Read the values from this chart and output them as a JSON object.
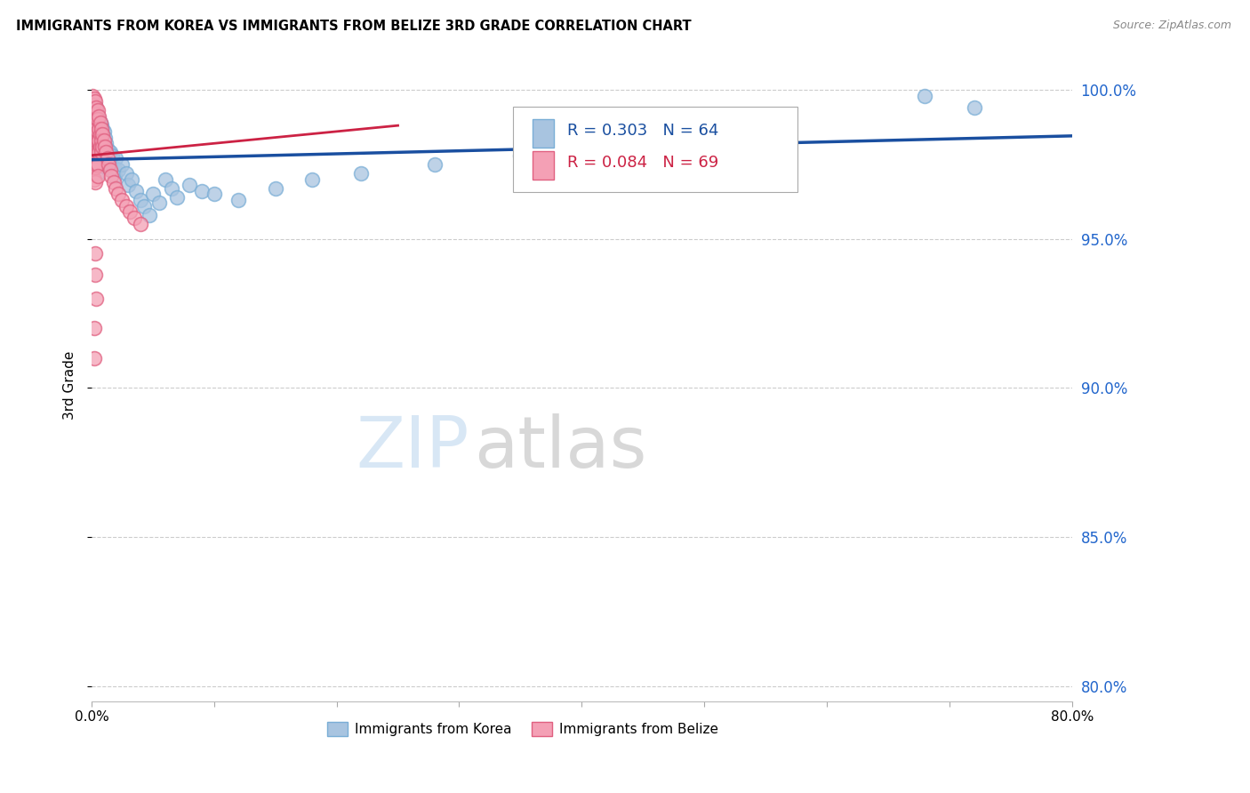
{
  "title": "IMMIGRANTS FROM KOREA VS IMMIGRANTS FROM BELIZE 3RD GRADE CORRELATION CHART",
  "source": "Source: ZipAtlas.com",
  "ylabel": "3rd Grade",
  "xlim": [
    0.0,
    0.8
  ],
  "ylim": [
    0.795,
    1.007
  ],
  "yticks": [
    0.8,
    0.85,
    0.9,
    0.95,
    1.0
  ],
  "ytick_labels": [
    "80.0%",
    "85.0%",
    "90.0%",
    "95.0%",
    "100.0%"
  ],
  "xticks": [
    0.0,
    0.1,
    0.2,
    0.3,
    0.4,
    0.5,
    0.6,
    0.7,
    0.8
  ],
  "xtick_labels": [
    "0.0%",
    "",
    "",
    "",
    "",
    "",
    "",
    "",
    "80.0%"
  ],
  "korea_color": "#a8c4e0",
  "belize_color": "#f4a0b5",
  "korea_edge_color": "#7aaed6",
  "belize_edge_color": "#e06080",
  "trend_korea_color": "#1a4fa0",
  "trend_belize_color": "#cc2244",
  "r_korea": 0.303,
  "n_korea": 64,
  "r_belize": 0.084,
  "n_belize": 69,
  "korea_x": [
    0.001,
    0.002,
    0.002,
    0.003,
    0.003,
    0.003,
    0.004,
    0.004,
    0.004,
    0.005,
    0.005,
    0.005,
    0.005,
    0.006,
    0.006,
    0.006,
    0.007,
    0.007,
    0.007,
    0.008,
    0.008,
    0.009,
    0.009,
    0.01,
    0.01,
    0.011,
    0.011,
    0.012,
    0.012,
    0.013,
    0.014,
    0.015,
    0.016,
    0.017,
    0.018,
    0.019,
    0.02,
    0.022,
    0.025,
    0.028,
    0.03,
    0.033,
    0.036,
    0.04,
    0.043,
    0.047,
    0.05,
    0.055,
    0.06,
    0.065,
    0.07,
    0.08,
    0.09,
    0.1,
    0.12,
    0.15,
    0.18,
    0.22,
    0.28,
    0.35,
    0.42,
    0.55,
    0.68,
    0.72
  ],
  "korea_y": [
    0.992,
    0.99,
    0.985,
    0.995,
    0.988,
    0.982,
    0.993,
    0.986,
    0.979,
    0.991,
    0.985,
    0.979,
    0.972,
    0.99,
    0.983,
    0.976,
    0.989,
    0.982,
    0.975,
    0.988,
    0.98,
    0.987,
    0.978,
    0.986,
    0.977,
    0.984,
    0.975,
    0.982,
    0.974,
    0.98,
    0.976,
    0.979,
    0.975,
    0.978,
    0.974,
    0.971,
    0.977,
    0.973,
    0.975,
    0.972,
    0.968,
    0.97,
    0.966,
    0.963,
    0.961,
    0.958,
    0.965,
    0.962,
    0.97,
    0.967,
    0.964,
    0.968,
    0.966,
    0.965,
    0.963,
    0.967,
    0.97,
    0.972,
    0.975,
    0.978,
    0.98,
    0.982,
    0.998,
    0.994
  ],
  "belize_x": [
    0.001,
    0.001,
    0.001,
    0.001,
    0.001,
    0.001,
    0.001,
    0.001,
    0.002,
    0.002,
    0.002,
    0.002,
    0.002,
    0.002,
    0.002,
    0.002,
    0.003,
    0.003,
    0.003,
    0.003,
    0.003,
    0.003,
    0.003,
    0.003,
    0.004,
    0.004,
    0.004,
    0.004,
    0.004,
    0.004,
    0.005,
    0.005,
    0.005,
    0.005,
    0.005,
    0.005,
    0.005,
    0.006,
    0.006,
    0.006,
    0.006,
    0.007,
    0.007,
    0.007,
    0.008,
    0.008,
    0.008,
    0.009,
    0.009,
    0.01,
    0.011,
    0.012,
    0.013,
    0.014,
    0.015,
    0.016,
    0.018,
    0.02,
    0.022,
    0.025,
    0.028,
    0.031,
    0.035,
    0.04,
    0.003,
    0.003,
    0.004,
    0.002,
    0.002
  ],
  "belize_y": [
    0.998,
    0.995,
    0.992,
    0.989,
    0.985,
    0.982,
    0.978,
    0.974,
    0.997,
    0.993,
    0.989,
    0.985,
    0.982,
    0.978,
    0.974,
    0.97,
    0.996,
    0.992,
    0.989,
    0.985,
    0.982,
    0.978,
    0.974,
    0.969,
    0.994,
    0.99,
    0.987,
    0.983,
    0.979,
    0.975,
    0.993,
    0.99,
    0.986,
    0.983,
    0.979,
    0.975,
    0.971,
    0.991,
    0.987,
    0.983,
    0.979,
    0.989,
    0.985,
    0.981,
    0.987,
    0.983,
    0.979,
    0.985,
    0.981,
    0.983,
    0.981,
    0.979,
    0.977,
    0.975,
    0.973,
    0.971,
    0.969,
    0.967,
    0.965,
    0.963,
    0.961,
    0.959,
    0.957,
    0.955,
    0.945,
    0.938,
    0.93,
    0.92,
    0.91
  ],
  "watermark_zip": "ZIP",
  "watermark_atlas": "atlas",
  "watermark_color_zip": "#c8dff0",
  "watermark_color_atlas": "#c8c8c8"
}
